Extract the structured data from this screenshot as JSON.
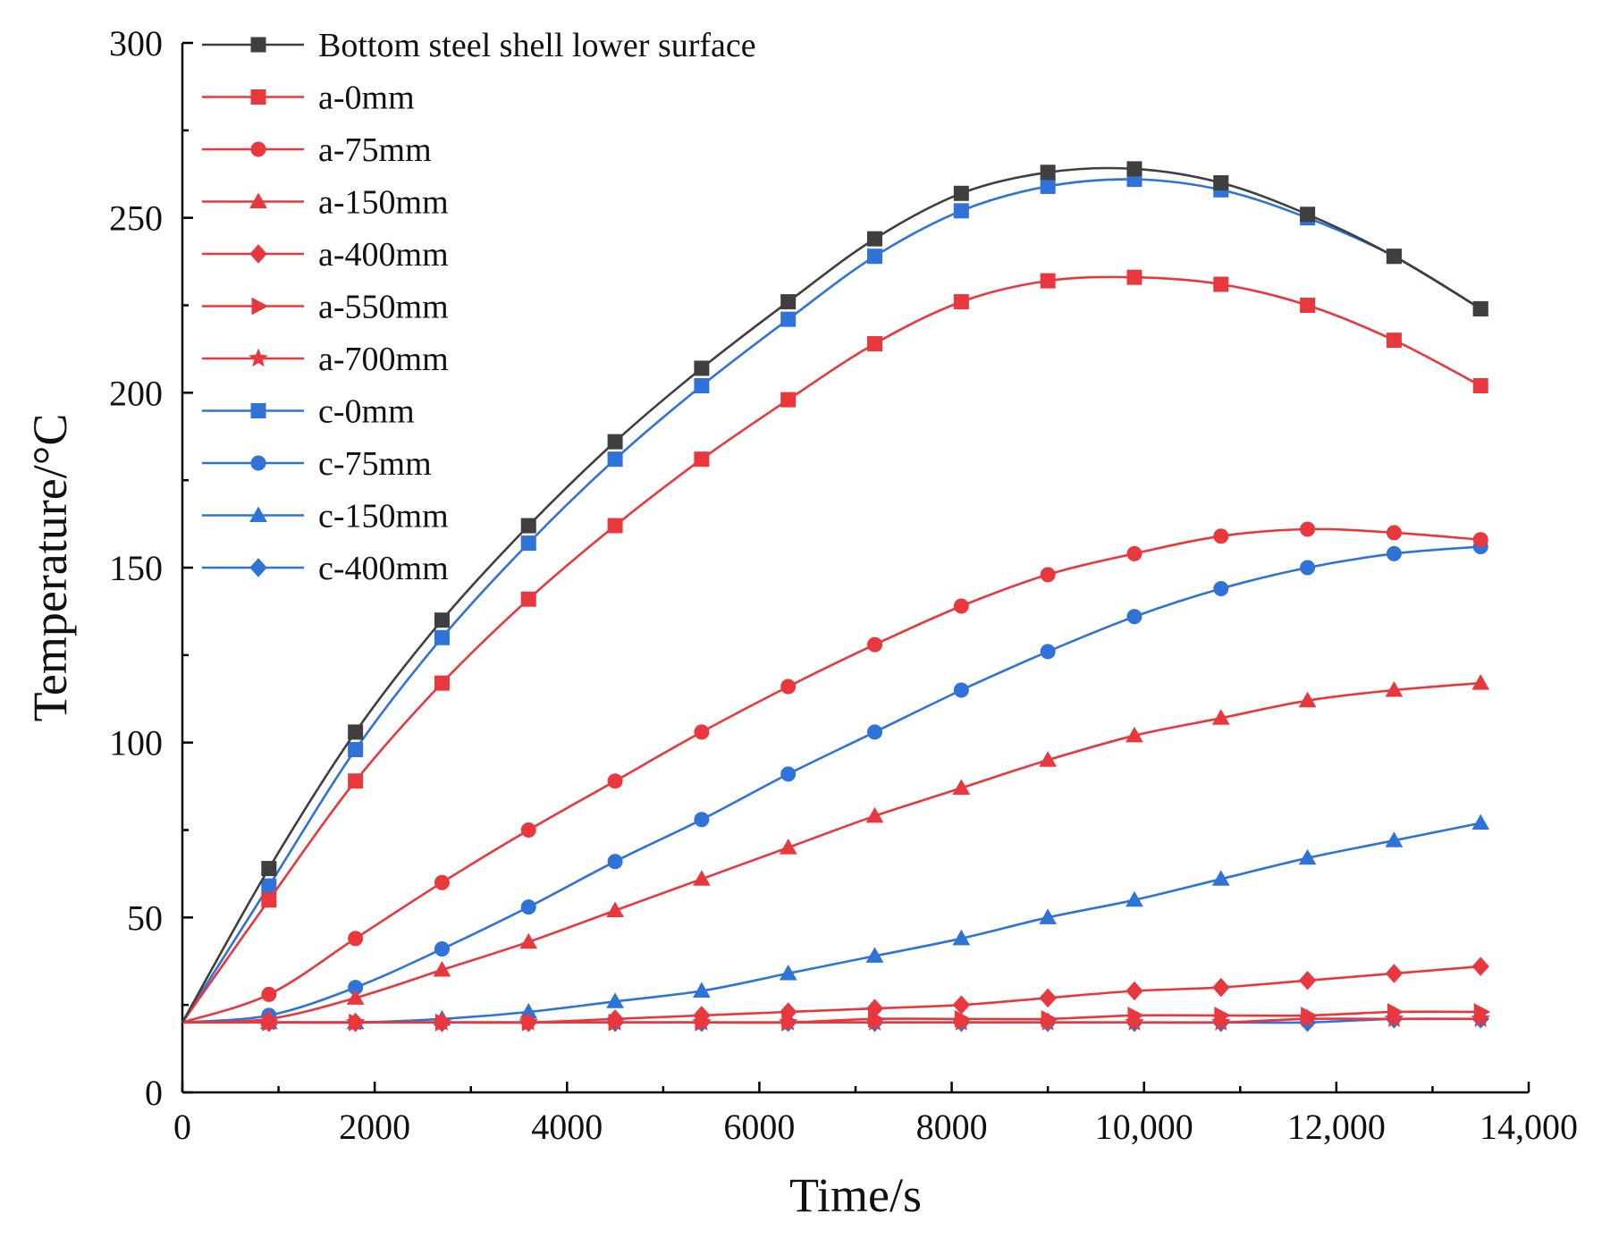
{
  "chart_data": {
    "type": "line",
    "title": "",
    "xlabel": "Time/s",
    "ylabel": "Temperature/°C",
    "xlim": [
      0,
      14000
    ],
    "ylim": [
      0,
      300
    ],
    "xticks": [
      0,
      2000,
      4000,
      6000,
      8000,
      10000,
      12000,
      14000
    ],
    "xtick_labels": [
      "0",
      "2000",
      "4000",
      "6000",
      "8000",
      "10,000",
      "12,000",
      "14,000"
    ],
    "yticks": [
      0,
      50,
      100,
      150,
      200,
      250,
      300
    ],
    "ytick_labels": [
      "0",
      "50",
      "100",
      "150",
      "200",
      "250",
      "300"
    ],
    "grid": false,
    "legend_position": "top-left",
    "x": [
      0,
      900,
      1800,
      2700,
      3600,
      4500,
      5400,
      6300,
      7200,
      8100,
      9000,
      9900,
      10800,
      11700,
      12600,
      13500
    ],
    "series": [
      {
        "name": "Bottom steel shell lower surface",
        "color": "#3f3f3f",
        "marker": "square",
        "values": [
          20,
          64,
          103,
          135,
          162,
          186,
          207,
          226,
          244,
          257,
          263,
          264,
          260,
          251,
          239,
          224
        ]
      },
      {
        "name": "a-0mm",
        "color": "#e8383d",
        "marker": "square",
        "values": [
          20,
          55,
          89,
          117,
          141,
          162,
          181,
          198,
          214,
          226,
          232,
          233,
          231,
          225,
          215,
          202
        ]
      },
      {
        "name": "a-75mm",
        "color": "#e8383d",
        "marker": "circle",
        "values": [
          20,
          28,
          44,
          60,
          75,
          89,
          103,
          116,
          128,
          139,
          148,
          154,
          159,
          161,
          160,
          158
        ]
      },
      {
        "name": "a-150mm",
        "color": "#e8383d",
        "marker": "triangle",
        "values": [
          20,
          21,
          27,
          35,
          43,
          52,
          61,
          70,
          79,
          87,
          95,
          102,
          107,
          112,
          115,
          117
        ]
      },
      {
        "name": "a-400mm",
        "color": "#e8383d",
        "marker": "diamond",
        "values": [
          20,
          20,
          20,
          20,
          20,
          21,
          22,
          23,
          24,
          25,
          27,
          29,
          30,
          32,
          34,
          36
        ]
      },
      {
        "name": "a-550mm",
        "color": "#e8383d",
        "marker": "triangle-right",
        "values": [
          20,
          20,
          20,
          20,
          20,
          20,
          20,
          20,
          21,
          21,
          21,
          22,
          22,
          22,
          23,
          23
        ]
      },
      {
        "name": "a-700mm",
        "color": "#e8383d",
        "marker": "star",
        "values": [
          20,
          20,
          20,
          20,
          20,
          20,
          20,
          20,
          20,
          20,
          20,
          20,
          20,
          21,
          21,
          21
        ]
      },
      {
        "name": "c-0mm",
        "color": "#2f72d8",
        "marker": "square",
        "values": [
          20,
          59,
          98,
          130,
          157,
          181,
          202,
          221,
          239,
          252,
          259,
          261,
          258,
          250,
          239,
          224
        ]
      },
      {
        "name": "c-75mm",
        "color": "#2f72d8",
        "marker": "circle",
        "values": [
          20,
          22,
          30,
          41,
          53,
          66,
          78,
          91,
          103,
          115,
          126,
          136,
          144,
          150,
          154,
          156
        ]
      },
      {
        "name": "c-150mm",
        "color": "#2f72d8",
        "marker": "triangle",
        "values": [
          20,
          20,
          20,
          21,
          23,
          26,
          29,
          34,
          39,
          44,
          50,
          55,
          61,
          67,
          72,
          77
        ]
      },
      {
        "name": "c-400mm",
        "color": "#2f72d8",
        "marker": "diamond",
        "values": [
          20,
          20,
          20,
          20,
          20,
          20,
          20,
          20,
          20,
          20,
          20,
          20,
          20,
          20,
          21,
          21
        ]
      }
    ]
  }
}
